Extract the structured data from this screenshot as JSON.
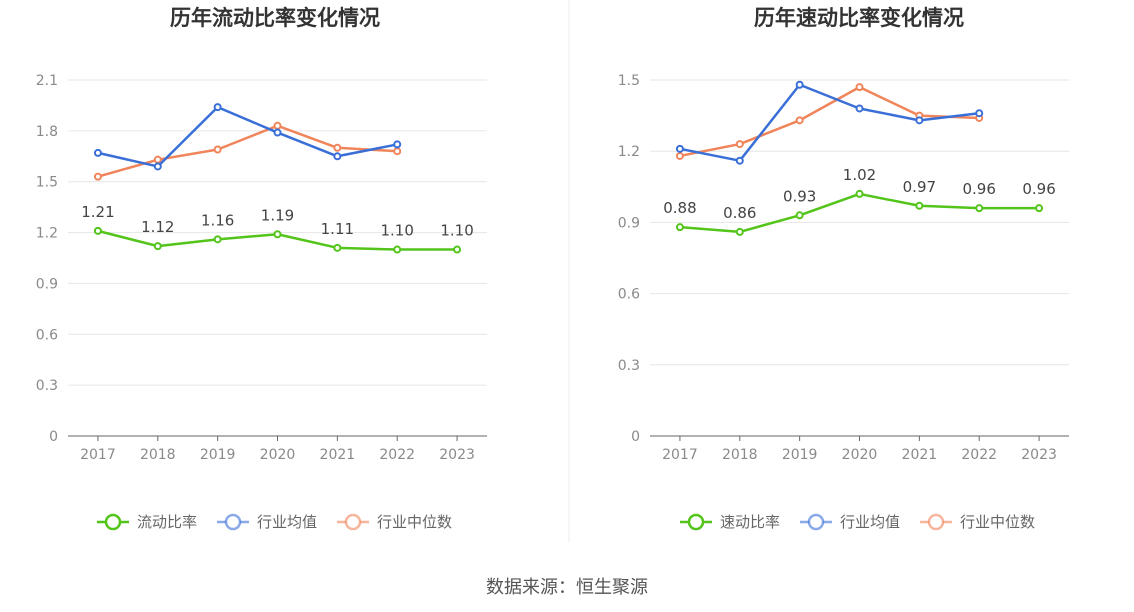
{
  "source": "数据来源：恒生聚源",
  "chart_data": [
    {
      "type": "line",
      "title": "历年流动比率变化情况",
      "categories": [
        "2017",
        "2018",
        "2019",
        "2020",
        "2021",
        "2022",
        "2023"
      ],
      "ylim": [
        0,
        2.1
      ],
      "yticks": [
        "0",
        "0.3",
        "0.6",
        "0.9",
        "1.2",
        "1.5",
        "1.8",
        "2.1"
      ],
      "grid": true,
      "legend_position": "bottom",
      "series": [
        {
          "name": "流动比率",
          "color": "#52c41a",
          "values": [
            1.21,
            1.12,
            1.16,
            1.19,
            1.11,
            1.1,
            1.1
          ],
          "labels": [
            "1.21",
            "1.12",
            "1.16",
            "1.19",
            "1.11",
            "1.10",
            "1.10"
          ]
        },
        {
          "name": "行业均值",
          "color": "#3a6fd8",
          "values": [
            1.67,
            1.59,
            1.94,
            1.79,
            1.65,
            1.72,
            null
          ]
        },
        {
          "name": "行业中位数",
          "color": "#f0845a",
          "values": [
            1.53,
            1.63,
            1.69,
            1.83,
            1.7,
            1.68,
            null
          ]
        }
      ]
    },
    {
      "type": "line",
      "title": "历年速动比率变化情况",
      "categories": [
        "2017",
        "2018",
        "2019",
        "2020",
        "2021",
        "2022",
        "2023"
      ],
      "ylim": [
        0,
        1.5
      ],
      "yticks": [
        "0",
        "0.3",
        "0.6",
        "0.9",
        "1.2",
        "1.5"
      ],
      "grid": true,
      "legend_position": "bottom",
      "series": [
        {
          "name": "速动比率",
          "color": "#52c41a",
          "values": [
            0.88,
            0.86,
            0.93,
            1.02,
            0.97,
            0.96,
            0.96
          ],
          "labels": [
            "0.88",
            "0.86",
            "0.93",
            "1.02",
            "0.97",
            "0.96",
            "0.96"
          ]
        },
        {
          "name": "行业均值",
          "color": "#3a6fd8",
          "values": [
            1.21,
            1.16,
            1.48,
            1.38,
            1.33,
            1.36,
            null
          ]
        },
        {
          "name": "行业中位数",
          "color": "#f0845a",
          "values": [
            1.18,
            1.23,
            1.33,
            1.47,
            1.35,
            1.34,
            null
          ]
        }
      ]
    }
  ]
}
